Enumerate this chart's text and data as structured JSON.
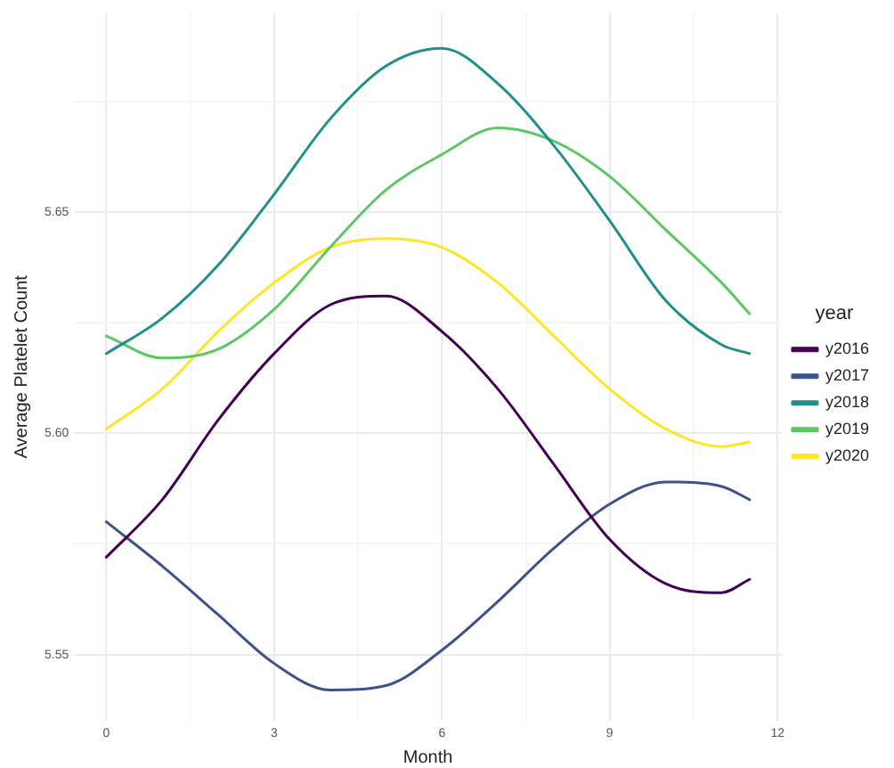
{
  "chart_data": {
    "type": "line",
    "xlabel": "Month",
    "ylabel": "Average Platelet Count",
    "legend_title": "year",
    "legend": "right",
    "grid": true,
    "marker": "none",
    "line_style": "solid",
    "x": [
      0,
      1,
      2,
      3,
      4,
      5,
      6,
      7,
      8,
      9,
      10,
      11,
      11.5
    ],
    "xlim": [
      -0.575,
      12.075
    ],
    "xticks": [
      0,
      {
        "value": 1.5,
        "label": null
      },
      3,
      {
        "value": 4.5,
        "label": null
      },
      6,
      {
        "value": 7.5,
        "label": null
      },
      9,
      {
        "value": 10.5,
        "label": null
      },
      12
    ],
    "ylim": [
      5.535,
      5.695
    ],
    "yticks": [
      {
        "value": 5.55,
        "label": "5.55"
      },
      {
        "value": 5.575,
        "label": null
      },
      {
        "value": 5.6,
        "label": "5.60"
      },
      {
        "value": 5.625,
        "label": null
      },
      {
        "value": 5.65,
        "label": "5.65"
      },
      {
        "value": 5.675,
        "label": null
      }
    ],
    "series": [
      {
        "name": "y2016",
        "color": "#440154",
        "values": [
          5.572,
          5.585,
          5.603,
          5.618,
          5.629,
          5.631,
          5.623,
          5.61,
          5.593,
          5.576,
          5.566,
          5.564,
          5.567
        ]
      },
      {
        "name": "y2017",
        "color": "#3b528b",
        "values": [
          5.58,
          5.57,
          5.559,
          5.548,
          5.542,
          5.543,
          5.551,
          5.562,
          5.574,
          5.584,
          5.589,
          5.588,
          5.585
        ]
      },
      {
        "name": "y2018",
        "color": "#21908c",
        "values": [
          5.618,
          5.626,
          5.638,
          5.654,
          5.671,
          5.683,
          5.687,
          5.679,
          5.665,
          5.648,
          5.63,
          5.62,
          5.618
        ]
      },
      {
        "name": "y2019",
        "color": "#5dc863",
        "values": [
          5.622,
          5.617,
          5.619,
          5.628,
          5.642,
          5.655,
          5.663,
          5.669,
          5.666,
          5.658,
          5.646,
          5.634,
          5.627
        ]
      },
      {
        "name": "y2020",
        "color": "#fde725",
        "values": [
          5.601,
          5.61,
          5.623,
          5.634,
          5.642,
          5.644,
          5.642,
          5.634,
          5.622,
          5.61,
          5.601,
          5.597,
          5.598
        ]
      }
    ]
  }
}
